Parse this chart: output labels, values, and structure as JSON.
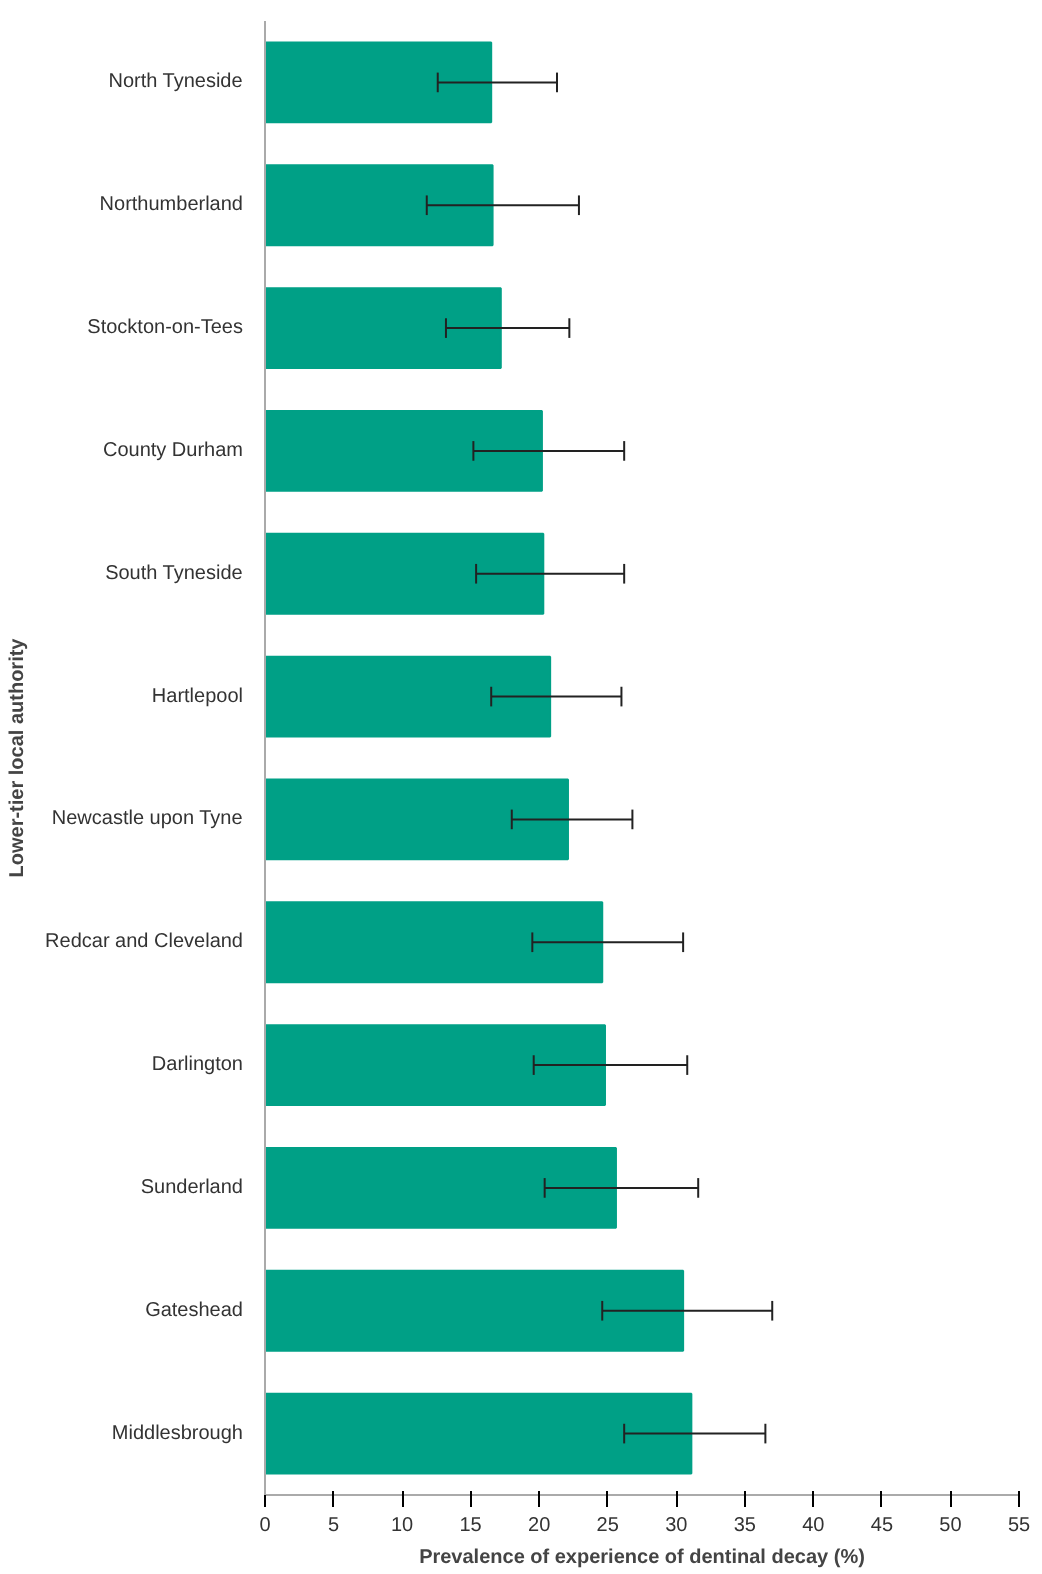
{
  "chart_data": {
    "type": "bar",
    "orientation": "horizontal",
    "xlabel": "Prevalence of experience of dentinal decay (%)",
    "ylabel": "Lower-tier local authority",
    "categories": [
      "North Tyneside",
      "Northumberland",
      "Stockton-on-Tees",
      "County Durham",
      "South Tyneside",
      "Hartlepool",
      "Newcastle upon Tyne",
      "Redcar and Cleveland",
      "Darlington",
      "Sunderland",
      "Gateshead",
      "Middlesbrough"
    ],
    "values": [
      16.5,
      16.6,
      17.2,
      20.2,
      20.3,
      20.8,
      22.1,
      24.6,
      24.8,
      25.6,
      30.5,
      31.1
    ],
    "errors": [
      [
        12.6,
        21.3
      ],
      [
        11.8,
        22.9
      ],
      [
        13.2,
        22.2
      ],
      [
        15.2,
        26.2
      ],
      [
        15.4,
        26.2
      ],
      [
        16.5,
        26.0
      ],
      [
        18.0,
        26.8
      ],
      [
        19.5,
        30.5
      ],
      [
        19.6,
        30.8
      ],
      [
        20.4,
        31.6
      ],
      [
        24.6,
        37.0
      ],
      [
        26.2,
        36.5
      ]
    ],
    "color": "#00a086",
    "xlim": [
      0,
      55
    ],
    "xticks": [
      0,
      5,
      10,
      15,
      20,
      25,
      30,
      35,
      40,
      45,
      50,
      55
    ],
    "grid": false
  }
}
